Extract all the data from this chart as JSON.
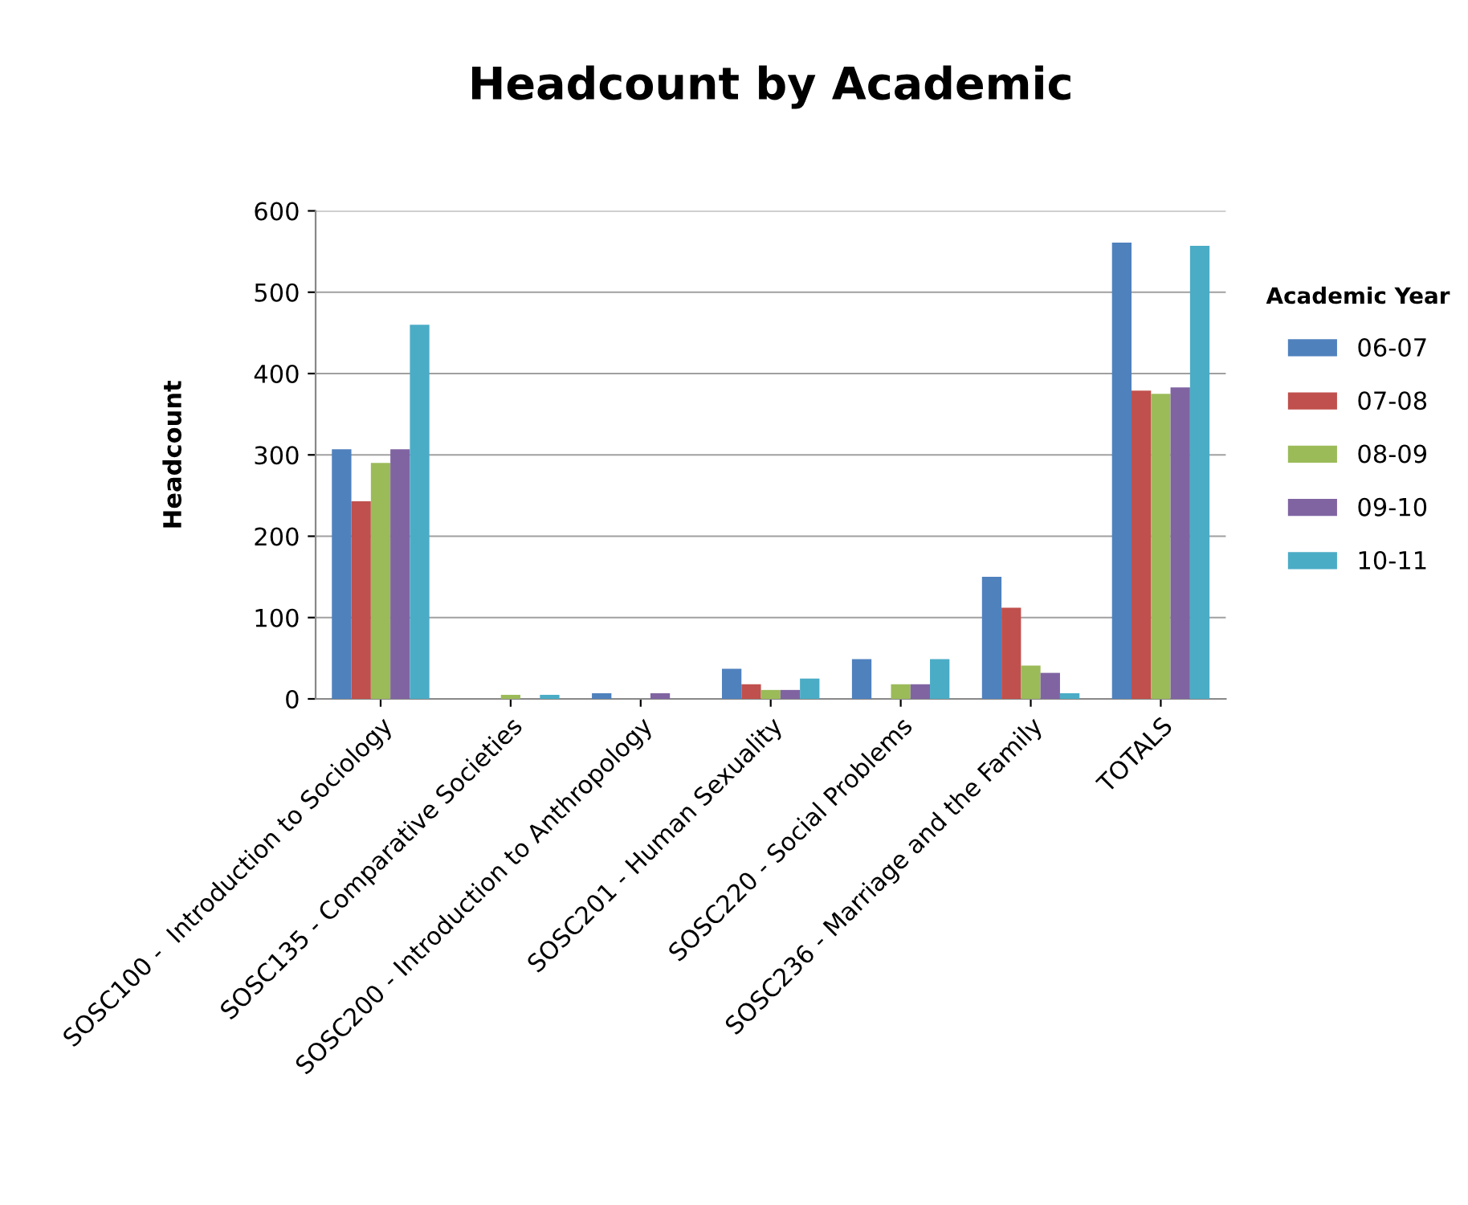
{
  "chart_data": {
    "type": "bar",
    "title": "Headcount by Academic",
    "ylabel": "Headcount",
    "legend_title": "Academic Year",
    "categories": [
      "SOSC100 -  Introduction to Sociology",
      "SOSC135 - Comparative Societies",
      "SOSC200 - Introduction to Anthropology",
      "SOSC201 - Human Sexuality",
      "SOSC220 - Social Problems",
      "SOSC236 - Marriage and the Family",
      "TOTALS"
    ],
    "series": [
      {
        "name": "06-07",
        "color": "#4f81bd",
        "values": [
          307,
          0,
          7,
          37,
          49,
          150,
          561
        ]
      },
      {
        "name": "07-08",
        "color": "#c0504d",
        "values": [
          243,
          0,
          0,
          18,
          0,
          112,
          379
        ]
      },
      {
        "name": "08-09",
        "color": "#9bbb59",
        "values": [
          290,
          5,
          0,
          11,
          18,
          41,
          375
        ]
      },
      {
        "name": "09-10",
        "color": "#8064a2",
        "values": [
          307,
          0,
          7,
          11,
          18,
          32,
          383
        ]
      },
      {
        "name": "10-11",
        "color": "#4bacc6",
        "values": [
          460,
          5,
          0,
          25,
          49,
          7,
          557
        ]
      }
    ],
    "ylim": [
      0,
      600
    ],
    "yticks": [
      0,
      100,
      200,
      300,
      400,
      500,
      600
    ],
    "grid": "y",
    "legend": "right"
  }
}
